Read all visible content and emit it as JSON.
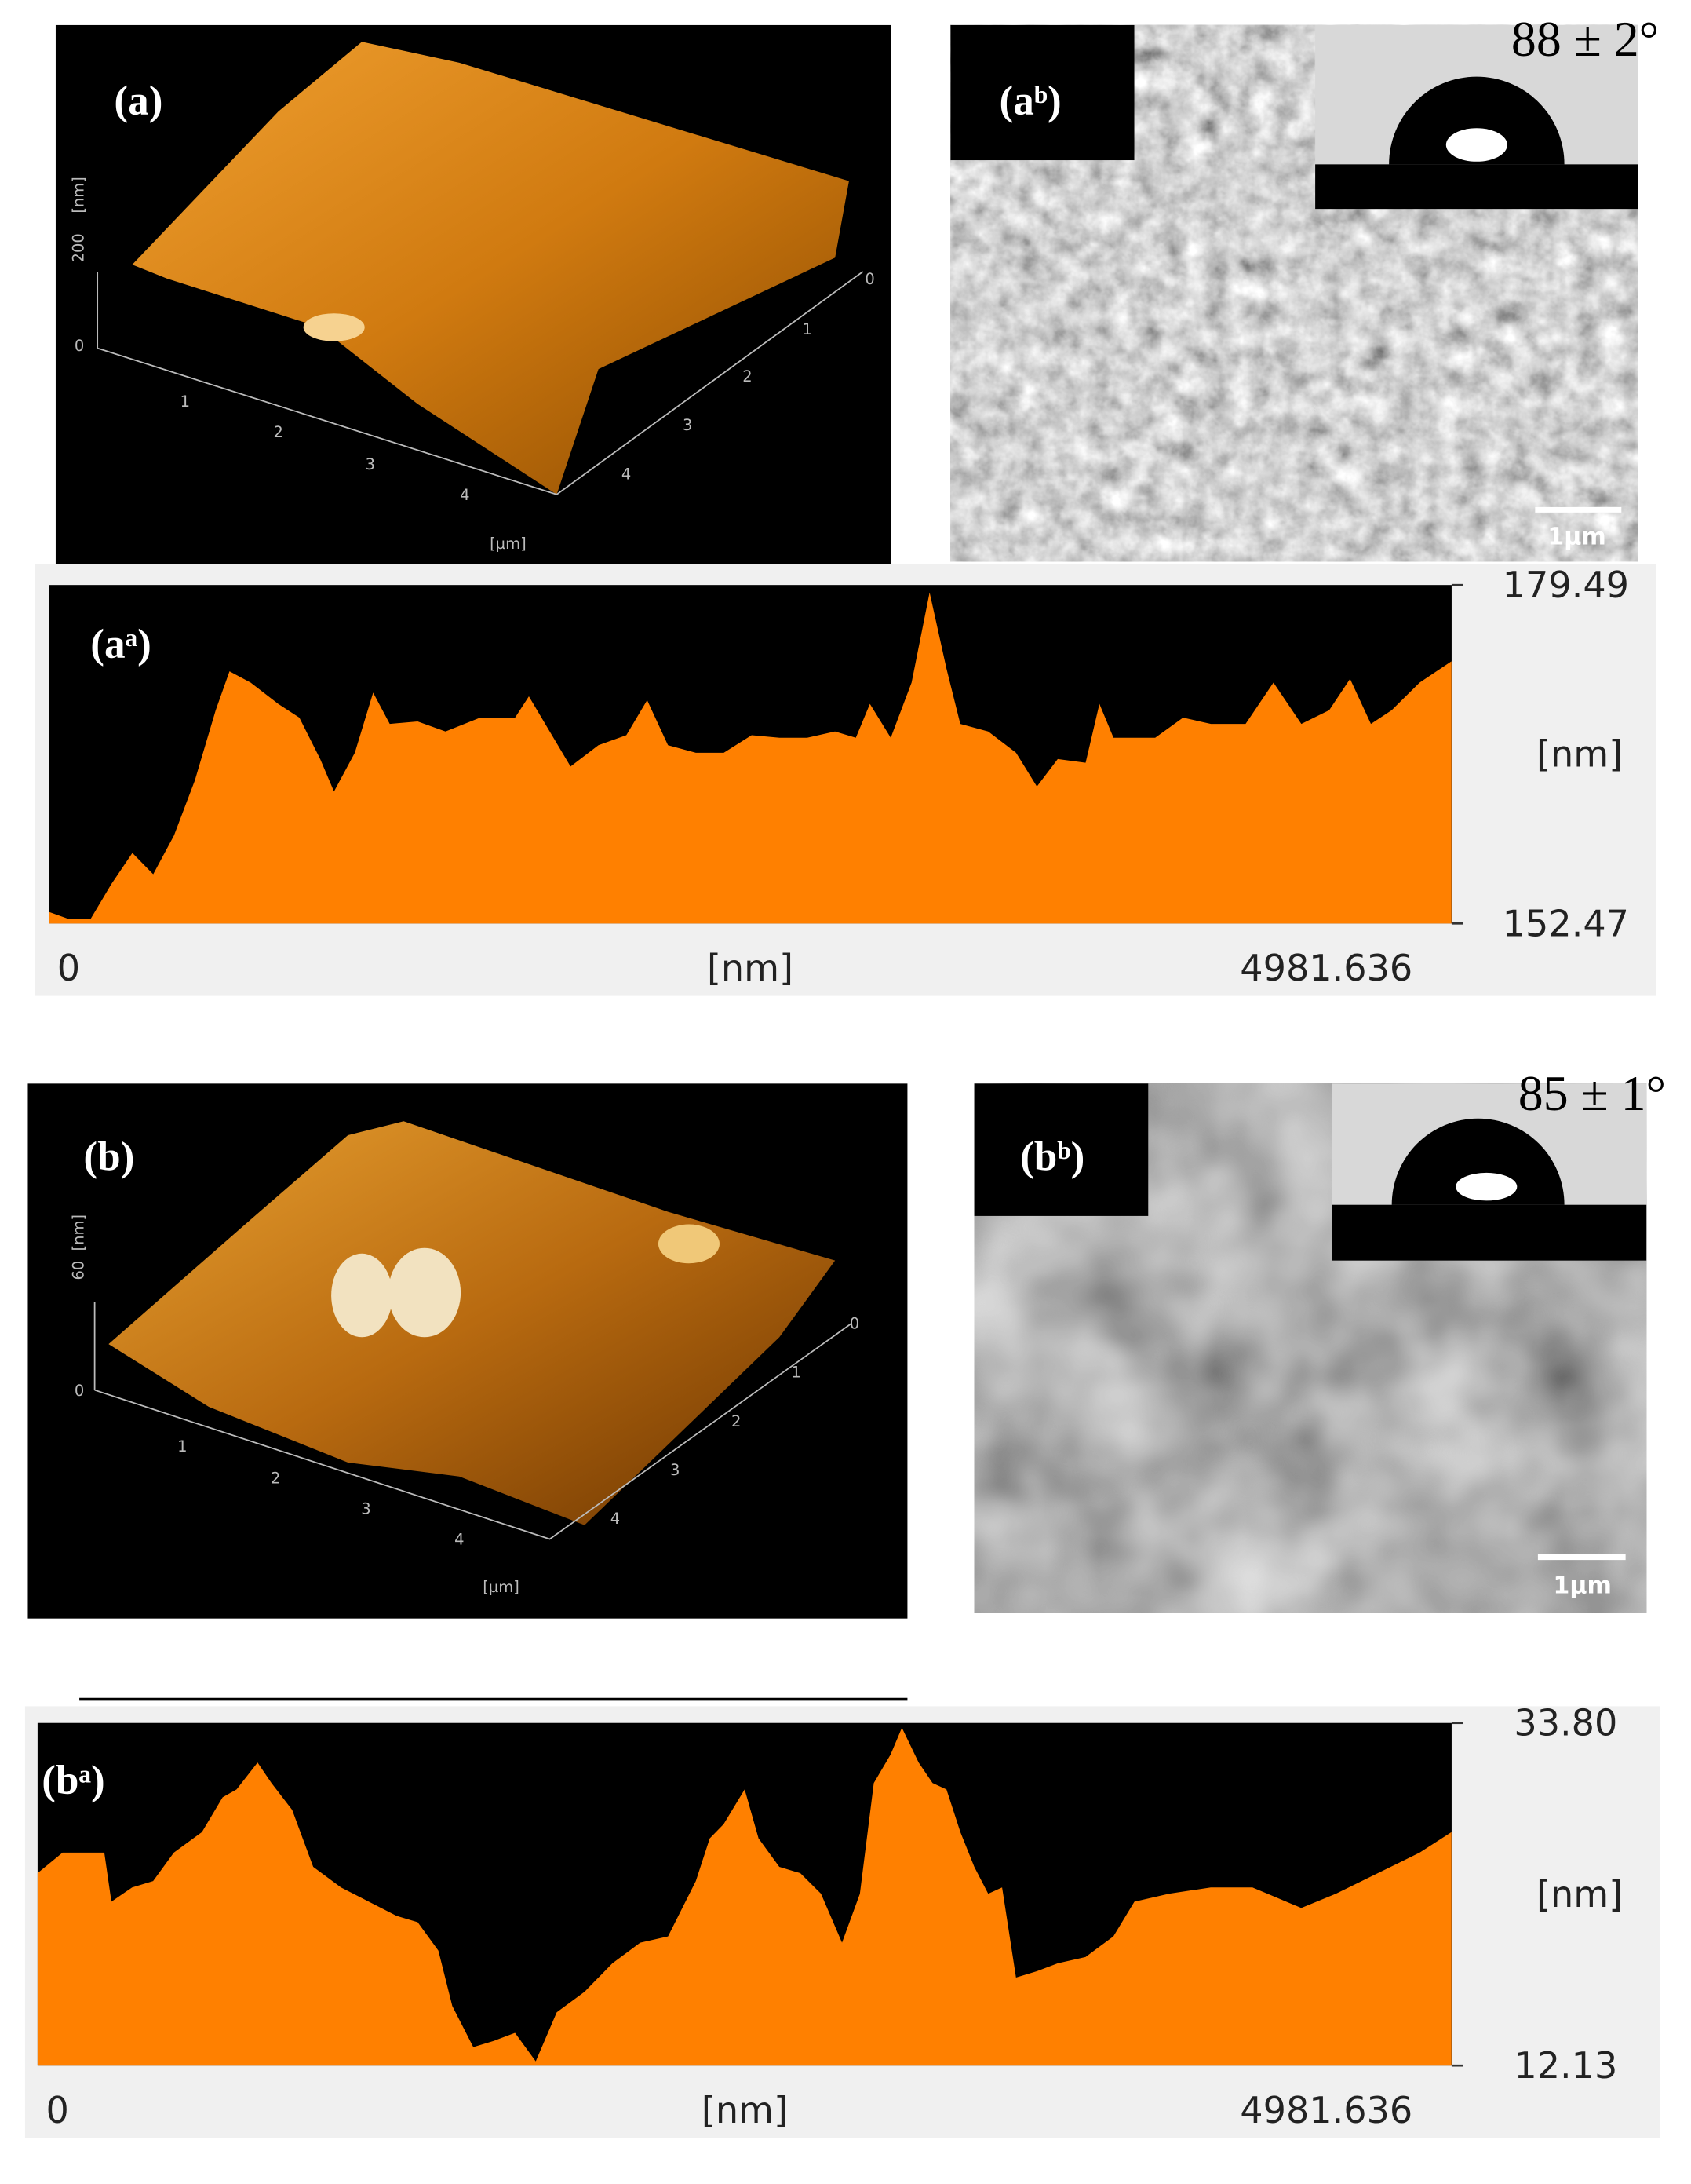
{
  "panels": [
    {
      "label": "(a)",
      "z_unit": "[nm]",
      "z_ticks": [
        "200",
        "0"
      ],
      "x_ticks": [
        "1",
        "2",
        "3",
        "4"
      ],
      "y_ticks": [
        "0",
        "1",
        "2",
        "3",
        "4"
      ],
      "unit": "[µm]"
    },
    {
      "label": "(aᵇ)",
      "contact_angle": "88 ± 2°",
      "scale_bar": "1µm"
    },
    {
      "label": "(b)",
      "z_unit": "[nm]",
      "z_ticks": [
        "60",
        "0"
      ],
      "x_ticks": [
        "1",
        "2",
        "3",
        "4"
      ],
      "y_ticks": [
        "0",
        "1",
        "2",
        "3",
        "4"
      ],
      "unit": "[µm]"
    },
    {
      "label": "(bᵇ)",
      "contact_angle": "85 ± 1°",
      "scale_bar": "1µm"
    }
  ],
  "chart_data": [
    {
      "type": "area",
      "label": "(aᵃ)",
      "x_label": "[nm]",
      "y_label": "[nm]",
      "color": "#ff8000",
      "background": "#000000",
      "x": [
        0,
        74,
        148,
        222,
        297,
        371,
        445,
        519,
        593,
        642,
        717,
        815,
        890,
        964,
        1013,
        1087,
        1152,
        1211,
        1310,
        1409,
        1532,
        1656,
        1705,
        1779,
        1853,
        1952,
        2051,
        2125,
        2199,
        2298,
        2397,
        2496,
        2595,
        2693,
        2792,
        2866,
        2916,
        2990,
        3064,
        3128,
        3188,
        3237,
        3336,
        3435,
        3509,
        3583,
        3682,
        3731,
        3781,
        3929,
        4028,
        4127,
        4250,
        4349,
        4448,
        4547,
        4621,
        4695,
        4769,
        4868,
        4981
      ],
      "values": [
        153.4,
        152.8,
        152.8,
        155.6,
        158.1,
        156.4,
        159.5,
        163.9,
        169.5,
        172.6,
        171.7,
        170.0,
        168.9,
        165.6,
        163.0,
        166.1,
        170.9,
        168.4,
        168.6,
        167.8,
        168.9,
        168.9,
        170.6,
        167.8,
        165.0,
        166.7,
        167.5,
        170.3,
        166.7,
        166.1,
        166.1,
        167.5,
        167.3,
        167.3,
        167.8,
        167.3,
        170.0,
        167.3,
        171.7,
        178.9,
        172.8,
        168.4,
        167.8,
        166.1,
        163.4,
        165.6,
        165.3,
        170.0,
        167.3,
        167.3,
        168.9,
        168.4,
        168.4,
        171.7,
        168.4,
        169.5,
        172.0,
        168.4,
        169.5,
        171.7,
        173.4
      ],
      "xlim": [
        0,
        4981.636
      ],
      "xticks": [
        0,
        4981.636
      ],
      "ylim": [
        152.47,
        179.49
      ],
      "yticks": [
        179.49,
        152.47
      ]
    },
    {
      "type": "area",
      "label": "(bᵃ)",
      "x_label": "[nm]",
      "y_label": "[nm]",
      "color": "#ff8000",
      "background": "#000000",
      "x": [
        0,
        88,
        235,
        260,
        333,
        407,
        480,
        579,
        652,
        701,
        775,
        824,
        897,
        971,
        1069,
        1167,
        1265,
        1339,
        1412,
        1461,
        1535,
        1608,
        1682,
        1755,
        1829,
        1927,
        2025,
        2123,
        2221,
        2319,
        2368,
        2417,
        2491,
        2540,
        2613,
        2687,
        2760,
        2834,
        2897,
        2946,
        3005,
        3045,
        3104,
        3153,
        3202,
        3251,
        3300,
        3349,
        3398,
        3447,
        3520,
        3594,
        3692,
        3790,
        3864,
        3986,
        4133,
        4280,
        4452,
        4574,
        4722,
        4869,
        4981
      ],
      "values": [
        24.3,
        25.6,
        25.6,
        22.5,
        23.4,
        23.8,
        25.6,
        26.9,
        29.1,
        29.6,
        31.3,
        30.0,
        28.3,
        24.7,
        23.4,
        22.5,
        21.6,
        21.2,
        19.4,
        15.9,
        13.3,
        13.7,
        14.2,
        12.4,
        15.5,
        16.8,
        18.6,
        19.9,
        20.3,
        23.8,
        26.5,
        27.4,
        29.6,
        26.5,
        24.7,
        24.3,
        23.0,
        19.9,
        23.0,
        30.0,
        31.8,
        33.5,
        31.3,
        30.0,
        29.6,
        26.9,
        24.7,
        23.0,
        23.4,
        17.7,
        18.1,
        18.6,
        19.0,
        20.3,
        22.5,
        23.0,
        23.4,
        23.4,
        22.1,
        23.0,
        24.3,
        25.6,
        26.9
      ],
      "xlim": [
        0,
        4981.636
      ],
      "xticks": [
        0,
        4981.636
      ],
      "ylim": [
        12.13,
        33.8
      ],
      "yticks": [
        {
          "value": 33.8,
          "label": "33.80"
        },
        12.13
      ]
    }
  ]
}
